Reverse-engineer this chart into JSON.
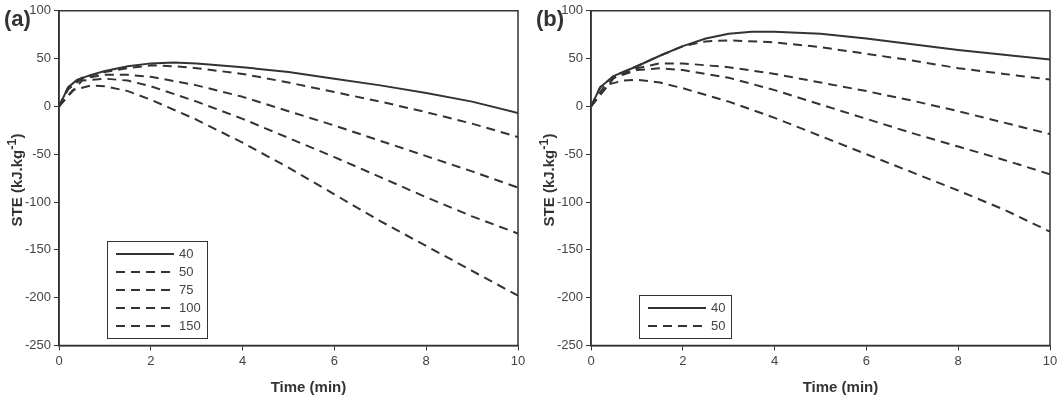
{
  "chart_data": [
    {
      "type": "line",
      "title": "(a)",
      "xlabel": "Time (min)",
      "ylabel": "STE (kJ.kg$^{-1}$)",
      "xlim": [
        0,
        10
      ],
      "xticks": [
        0,
        2,
        4,
        6,
        8,
        10
      ],
      "ylim": [
        -250,
        100
      ],
      "yticks": [
        -250,
        -200,
        -150,
        -100,
        -50,
        0,
        50,
        100
      ],
      "grid": false,
      "legend": "bottom left",
      "marker": "none",
      "series": [
        {
          "name": "40",
          "color": "#333333",
          "line_style": "solid",
          "x": [
            0,
            0.2,
            0.4,
            0.7,
            1,
            1.5,
            2,
            2.5,
            3,
            4,
            5,
            6,
            7,
            8,
            9,
            10
          ],
          "values": [
            0,
            20,
            28,
            33,
            37,
            42,
            45,
            46,
            45,
            41,
            36,
            29,
            22,
            14,
            5,
            -7
          ]
        },
        {
          "name": "50",
          "color": "#333333",
          "line_style": "dashed",
          "x": [
            0,
            0.2,
            0.5,
            1,
            1.5,
            2,
            2.5,
            3,
            4,
            5,
            6,
            7,
            8,
            9,
            10
          ],
          "values": [
            0,
            20,
            30,
            36,
            40,
            43,
            42,
            40,
            34,
            25,
            15,
            5,
            -6,
            -18,
            -32
          ]
        },
        {
          "name": "75",
          "color": "#333333",
          "line_style": "dashed",
          "x": [
            0,
            0.2,
            0.5,
            1,
            1.5,
            2,
            3,
            4,
            5,
            6,
            7,
            8,
            9,
            10
          ],
          "values": [
            0,
            18,
            29,
            33,
            33,
            31,
            22,
            10,
            -5,
            -20,
            -36,
            -52,
            -68,
            -85
          ]
        },
        {
          "name": "100",
          "color": "#333333",
          "line_style": "dashed",
          "x": [
            0,
            0.5,
            1,
            1.5,
            2,
            3,
            4,
            5,
            6,
            7,
            8,
            9,
            10
          ],
          "values": [
            0,
            27,
            29,
            27,
            21,
            5,
            -13,
            -33,
            -53,
            -74,
            -95,
            -115,
            -133
          ]
        },
        {
          "name": "150",
          "color": "#333333",
          "line_style": "dashed",
          "x": [
            0,
            0.3,
            0.7,
            1,
            1.5,
            2,
            3,
            4,
            5,
            6,
            7,
            8,
            9,
            10
          ],
          "values": [
            0,
            17,
            22,
            21,
            16,
            7,
            -14,
            -38,
            -64,
            -92,
            -120,
            -146,
            -172,
            -198
          ]
        }
      ]
    },
    {
      "type": "line",
      "title": "(b)",
      "xlabel": "Time (min)",
      "ylabel": "STE (kJ.kg$^{-1}$)",
      "xlim": [
        0,
        10
      ],
      "xticks": [
        0,
        2,
        4,
        6,
        8,
        10
      ],
      "ylim": [
        -250,
        100
      ],
      "yticks": [
        -250,
        -200,
        -150,
        -100,
        -50,
        0,
        50,
        100
      ],
      "grid": false,
      "legend": "bottom left",
      "marker": "none",
      "series": [
        {
          "name": "40",
          "color": "#333333",
          "line_style": "solid",
          "x": [
            0,
            0.2,
            0.5,
            1,
            1.5,
            2,
            2.5,
            3,
            3.5,
            4,
            5,
            6,
            7,
            8,
            9,
            10
          ],
          "values": [
            0,
            20,
            32,
            42,
            53,
            63,
            71,
            76,
            78,
            78,
            76,
            71,
            65,
            59,
            54,
            49
          ]
        },
        {
          "name": "50",
          "color": "#333333",
          "line_style": "dashed",
          "x": [
            0,
            0.2,
            0.5,
            1,
            1.5,
            2,
            2.5,
            3,
            4,
            5,
            6,
            7,
            8,
            9,
            10
          ],
          "values": [
            0,
            20,
            32,
            42,
            53,
            63,
            68,
            69,
            67,
            62,
            55,
            48,
            40,
            34,
            28
          ]
        },
        {
          "color": "#333333",
          "line_style": "dashed",
          "x": [
            0,
            0.5,
            1,
            1.5,
            2,
            3,
            4,
            5,
            6,
            7,
            8,
            9,
            10
          ],
          "values": [
            0,
            30,
            40,
            45,
            45,
            41,
            34,
            25,
            16,
            6,
            -5,
            -17,
            -29
          ]
        },
        {
          "color": "#333333",
          "line_style": "dashed",
          "x": [
            0,
            0.5,
            1,
            1.5,
            2,
            3,
            4,
            5,
            6,
            7,
            8,
            9,
            10
          ],
          "values": [
            0,
            30,
            38,
            40,
            38,
            30,
            17,
            2,
            -13,
            -28,
            -42,
            -56,
            -71
          ]
        },
        {
          "color": "#333333",
          "line_style": "dashed",
          "x": [
            0,
            0.3,
            0.7,
            1,
            1.5,
            2,
            3,
            4,
            5,
            6,
            7,
            8,
            9,
            10
          ],
          "values": [
            0,
            22,
            27,
            28,
            25,
            19,
            5,
            -12,
            -31,
            -50,
            -69,
            -88,
            -108,
            -131
          ]
        }
      ]
    }
  ]
}
